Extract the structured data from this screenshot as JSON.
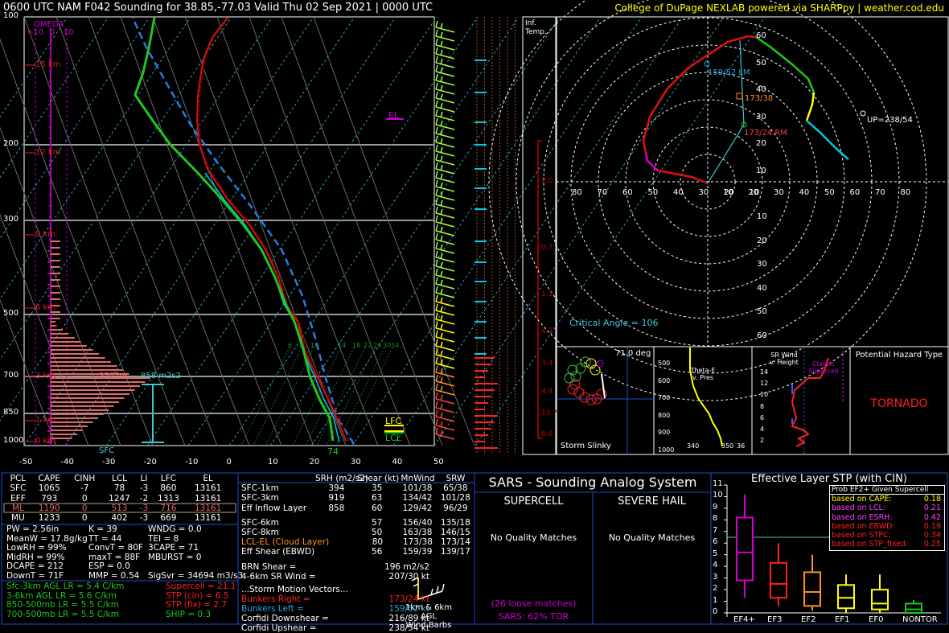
{
  "header": {
    "left": "0600 UTC NAM F042 Sounding for 38.85,-77.03  Valid  Thu 02 Sep 2021 | 0000 UTC",
    "right": "College of DuPage NEXLAB powered via SHARPpy | weather.cod.edu"
  },
  "skewt": {
    "pressure_labels": [
      "100",
      "200",
      "300",
      "500",
      "700",
      "850",
      "1000"
    ],
    "height_labels": [
      "15 km",
      "12 km",
      "9 km",
      "6 km",
      "3 km",
      "1 km",
      "0 km"
    ],
    "temp_labels": [
      "-50",
      "-40",
      "-30",
      "-20",
      "-10",
      "0",
      "10",
      "20",
      "30",
      "40",
      "50"
    ],
    "omega_label": "OMEGA",
    "omega_scale": [
      "+10",
      "0",
      "-10"
    ],
    "el_label": "EL",
    "lfc_label": "LFC",
    "lcl_label": "LCL",
    "sfc_label": "SFC",
    "sfc_temp": "74",
    "effective_layer_height": "2702m",
    "effective_srh": "858 m2s2",
    "mixing_ratio_labels": [
      "6",
      "8",
      "10",
      "14",
      "18",
      "22",
      "26",
      "30",
      "34"
    ],
    "profile_colors": {
      "temp": "#d01010",
      "dewpoint": "#1ec81e",
      "virtual_temp": "#e01010",
      "parcel": "#2080e0"
    }
  },
  "inferred_temp": {
    "title_1": "Inf.",
    "title_2": "Temp.",
    "values": [
      "2.0",
      "0.7",
      "1.3",
      "4.7",
      "3.4",
      "4.4",
      "13.7",
      "6.8"
    ]
  },
  "hodograph": {
    "lm_label": "159/52 LM",
    "rm_label": "173/24 RM",
    "mean_label": "173/38",
    "up_label": "UP=238/54",
    "critical_angle": "Critical Angle = 106",
    "ring_labels": [
      "60",
      "50",
      "40",
      "30",
      "20",
      "10"
    ],
    "x_labels_left": [
      "80",
      "70",
      "60",
      "50",
      "40",
      "30",
      "20",
      "10"
    ],
    "x_labels_right": [
      "10",
      "20",
      "30",
      "40",
      "50",
      "60",
      "70",
      "80"
    ],
    "y_labels_bottom": [
      "10",
      "20",
      "30",
      "40",
      "50",
      "60"
    ]
  },
  "slinky": {
    "title": "Storm Slinky",
    "angle": "71.0 deg"
  },
  "theta_e": {
    "title": "Theta-E v. Pres",
    "p_labels": [
      "500",
      "600",
      "700",
      "800",
      "900",
      "1000"
    ],
    "x_labels": [
      "340",
      "350",
      "36"
    ]
  },
  "srwind": {
    "title": "SR Wind v. Height",
    "classic": "Classic Supercell",
    "h_labels": [
      "14",
      "12",
      "10",
      "8",
      "6",
      "4",
      "2"
    ]
  },
  "hazard": {
    "title": "Potential Hazard Type",
    "value": "TORNADO"
  },
  "parcels": {
    "headers": [
      "PCL",
      "CAPE",
      "CINH",
      "LCL",
      "LI",
      "LFC",
      "EL"
    ],
    "rows": [
      [
        "SFC",
        "1065",
        "-7",
        "78",
        "-3",
        "860",
        "13161"
      ],
      [
        "EFF",
        "793",
        "0",
        "1247",
        "-2",
        "1313",
        "13161"
      ],
      [
        "ML",
        "1190",
        "0",
        "513",
        "-3",
        "716",
        "13161"
      ],
      [
        "MU",
        "1233",
        "0",
        "402",
        "-3",
        "669",
        "13161"
      ]
    ]
  },
  "indices": [
    [
      "PW = 2.56in",
      "K = 39",
      "WNDG = 0.0"
    ],
    [
      "MeanW = 17.8g/kg",
      "TT = 44",
      "TEI = 8"
    ],
    [
      "LowRH = 99%",
      "ConvT = 80F",
      "3CAPE = 71"
    ],
    [
      "MidRH = 99%",
      "maxT = 88F",
      "MBURST = 0"
    ],
    [
      "DCAPE = 212",
      "ESP = 0.0",
      ""
    ],
    [
      "DownT = 71F",
      "MMP = 0.54",
      "SigSvr = 34694 m3/s3"
    ]
  ],
  "lapse_rates": [
    "Sfc-3km AGL LR = 5.4 C/km",
    "3-6km AGL LR = 5.6 C/km",
    "850-500mb LR = 5.5 C/km",
    "700-500mb LR = 5.5 C/km"
  ],
  "composites": [
    "Supercell = 21.1",
    "STP (cin) = 6.5",
    "STP (fix) = 2.7",
    "SHIP = 0.3"
  ],
  "kinematics": {
    "headers": [
      "SRH (m2/s2)",
      "Shear (kt)",
      "MnWind",
      "SRW"
    ],
    "rows": [
      [
        "SFC-1km",
        "394",
        "35",
        "101/38",
        "65/38"
      ],
      [
        "SFC-3km",
        "919",
        "63",
        "134/42",
        "101/28"
      ],
      [
        "Eff Inflow Layer",
        "858",
        "60",
        "129/42",
        "96/29"
      ],
      [
        "SFC-6km",
        "",
        "57",
        "156/40",
        "135/18"
      ],
      [
        "SFC-8km",
        "",
        "50",
        "163/38",
        "146/15"
      ],
      [
        "LCL-EL (Cloud Layer)",
        "",
        "80",
        "173/38",
        "173/14"
      ],
      [
        "Eff Shear (EBWD)",
        "",
        "56",
        "159/39",
        "139/17"
      ]
    ],
    "brn_shear": [
      "BRN Shear =",
      "196 m2/s2"
    ],
    "sr_wind_46": [
      "4-6km SR Wind =",
      "207/30 kt"
    ],
    "storm_motion_title": "...Storm Motion Vectors...",
    "motion": [
      [
        "Bunkers Right =",
        "173/24 kt"
      ],
      [
        "Bunkers Left =",
        "159/52 kt"
      ],
      [
        "Corfidi Downshear =",
        "216/89 kt"
      ],
      [
        "Corfidi Upshear =",
        "238/54 kt"
      ]
    ],
    "barbs_caption_1": "1km & 6km AGL",
    "barbs_caption_2": "Wind Barbs"
  },
  "sars": {
    "title": "SARS - Sounding Analog System",
    "supercell": "SUPERCELL",
    "hail": "SEVERE HAIL",
    "sc_match": "No Quality Matches",
    "hail_match": "No Quality Matches",
    "loose": "(26 loose matches)",
    "tor": "SARS: 62% TOR"
  },
  "stp": {
    "title": "Effective Layer STP (with CIN)",
    "legend_title": "Prob EF2+ Given Supercell",
    "legend": [
      [
        "based on CAPE:",
        "0.18",
        "#ffff00"
      ],
      [
        "based on LCL:",
        "0.21",
        "#ff40ff"
      ],
      [
        "based on ESRH:",
        "0.42",
        "#ff40ff"
      ],
      [
        "based on EBWD:",
        "0.19",
        "#ff2020"
      ],
      [
        "based on STPC:",
        "0.34",
        "#ff2020"
      ],
      [
        "based on STP_fixed:",
        "0.25",
        "#ff2020"
      ]
    ],
    "y_labels": [
      "11",
      "10",
      "9",
      "8",
      "7",
      "6",
      "5",
      "4",
      "3",
      "2",
      "1",
      "0"
    ],
    "categories": [
      "EF4+",
      "EF3",
      "EF2",
      "EF1",
      "EF0",
      "NONTOR"
    ]
  }
}
